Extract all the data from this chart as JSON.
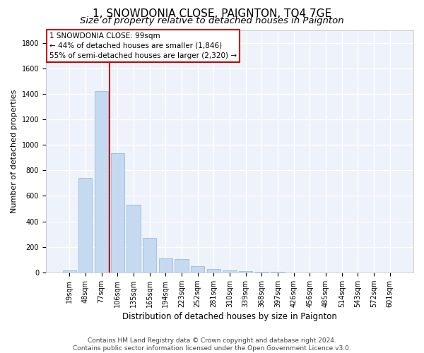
{
  "title": "1, SNOWDONIA CLOSE, PAIGNTON, TQ4 7GE",
  "subtitle": "Size of property relative to detached houses in Paignton",
  "xlabel": "Distribution of detached houses by size in Paignton",
  "ylabel": "Number of detached properties",
  "bar_color": "#c5d9f0",
  "bar_edge_color": "#8ab4d8",
  "background_color": "#eef2fb",
  "grid_color": "#ffffff",
  "categories": [
    "19sqm",
    "48sqm",
    "77sqm",
    "106sqm",
    "135sqm",
    "165sqm",
    "194sqm",
    "223sqm",
    "252sqm",
    "281sqm",
    "310sqm",
    "339sqm",
    "368sqm",
    "397sqm",
    "426sqm",
    "456sqm",
    "485sqm",
    "514sqm",
    "543sqm",
    "572sqm",
    "601sqm"
  ],
  "values": [
    18,
    740,
    1420,
    935,
    530,
    270,
    110,
    105,
    50,
    25,
    15,
    8,
    3,
    2,
    1,
    1,
    1,
    0,
    0,
    0,
    0
  ],
  "ylim": [
    0,
    1900
  ],
  "yticks": [
    0,
    200,
    400,
    600,
    800,
    1000,
    1200,
    1400,
    1600,
    1800
  ],
  "vline_x": 2.5,
  "vline_color": "#cc0000",
  "annotation_text": "1 SNOWDONIA CLOSE: 99sqm\n← 44% of detached houses are smaller (1,846)\n55% of semi-detached houses are larger (2,320) →",
  "footer_text": "Contains HM Land Registry data © Crown copyright and database right 2024.\nContains public sector information licensed under the Open Government Licence v3.0.",
  "title_fontsize": 11,
  "subtitle_fontsize": 9.5,
  "annotation_fontsize": 7.5,
  "footer_fontsize": 6.5,
  "ylabel_fontsize": 8,
  "xlabel_fontsize": 8.5,
  "tick_fontsize": 7
}
